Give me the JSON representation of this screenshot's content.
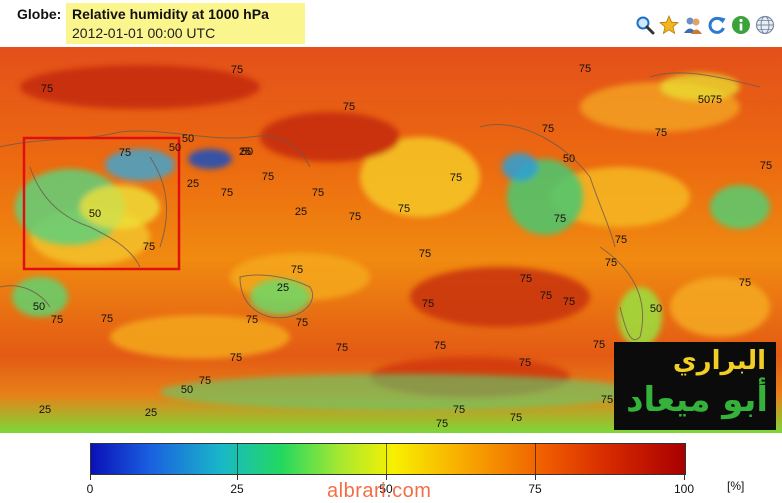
{
  "header": {
    "globe_label": "Globe:",
    "title": "Relative humidity at 1000 hPa",
    "timestamp": "2012-01-01 00:00 UTC"
  },
  "toolbar": {
    "icons": [
      "search-icon",
      "star-icon",
      "users-icon",
      "refresh-icon",
      "info-icon",
      "globe-icon"
    ]
  },
  "map": {
    "contour_labels": [
      "75",
      "75",
      "75",
      "75",
      "75",
      "50",
      "50",
      "75",
      "50",
      "75",
      "75",
      "25",
      "25",
      "75",
      "75",
      "75",
      "75",
      "50",
      "50",
      "25",
      "50",
      "75",
      "75",
      "75",
      "75",
      "75",
      "75",
      "75",
      "75",
      "75",
      "75",
      "25",
      "75",
      "75",
      "75",
      "50",
      "75",
      "50",
      "75",
      "75",
      "75",
      "75",
      "75",
      "75",
      "75",
      "75",
      "50",
      "75",
      "75",
      "25",
      "25",
      "75",
      "75",
      "75",
      "75"
    ],
    "highlight_color": "#e01010"
  },
  "watermark": {
    "line1": "البراري",
    "line2": "أبو ميعاد"
  },
  "colorbar": {
    "ticks": [
      "0",
      "25",
      "50",
      "75",
      "100"
    ],
    "unit": "[%]",
    "min_color": "#0a10b8",
    "max_color": "#a80000"
  },
  "site_watermark": "albrari.com"
}
